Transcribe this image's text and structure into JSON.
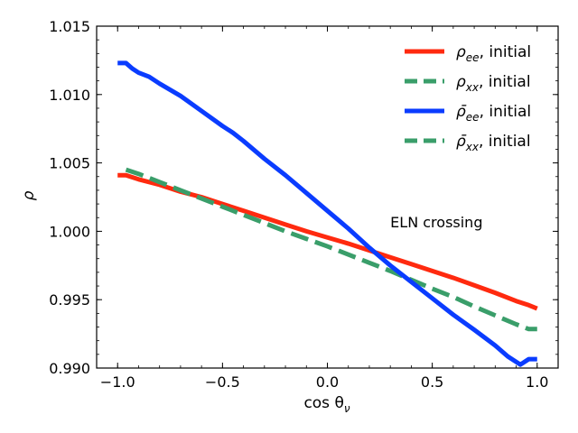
{
  "chart_data": {
    "type": "line",
    "title": "",
    "xlabel": "cos θ_ν",
    "ylabel": "ρ",
    "xlim": [
      -1.1,
      1.1
    ],
    "ylim": [
      0.99,
      1.015
    ],
    "xticks": [
      -1.0,
      -0.5,
      0.0,
      0.5,
      1.0
    ],
    "xtick_labels": [
      "−1.0",
      "−0.5",
      "0.0",
      "0.5",
      "1.0"
    ],
    "yticks": [
      0.99,
      0.995,
      1.0,
      1.005,
      1.01,
      1.015
    ],
    "ytick_labels": [
      "0.990",
      "0.995",
      "1.000",
      "1.005",
      "1.010",
      "1.015"
    ],
    "grid": false,
    "legend_position": "top-right",
    "annotations": [
      {
        "text": "ELN crossing",
        "x": 0.3,
        "y": 1.0003
      }
    ],
    "series": [
      {
        "name": "ρ_ee, initial",
        "color": "#ff2a0f",
        "style": "solid",
        "x": [
          -1.0,
          -0.96,
          -0.9,
          -0.8,
          -0.7,
          -0.6,
          -0.5,
          -0.4,
          -0.3,
          -0.2,
          -0.1,
          0.0,
          0.1,
          0.2,
          0.3,
          0.4,
          0.5,
          0.6,
          0.7,
          0.8,
          0.9,
          0.96,
          1.0
        ],
        "values": [
          1.0041,
          1.0041,
          1.0038,
          1.0034,
          1.0029,
          1.0025,
          1.002,
          1.0015,
          1.001,
          1.0005,
          1.0,
          0.99955,
          0.9991,
          0.9986,
          0.9981,
          0.9976,
          0.9971,
          0.9966,
          0.99605,
          0.9955,
          0.9949,
          0.9946,
          0.99435
        ]
      },
      {
        "name": "ρ_xx, initial",
        "color": "#3a9e6a",
        "style": "dashed",
        "x": [
          -0.96,
          -0.9,
          -0.8,
          -0.7,
          -0.6,
          -0.5,
          -0.4,
          -0.3,
          -0.2,
          -0.1,
          0.0,
          0.1,
          0.2,
          0.3,
          0.4,
          0.5,
          0.6,
          0.7,
          0.8,
          0.9,
          0.96,
          1.0
        ],
        "values": [
          1.0045,
          1.0042,
          1.0036,
          1.003,
          1.0024,
          1.0018,
          1.0012,
          1.0006,
          1.0,
          0.99945,
          0.9989,
          0.9983,
          0.9977,
          0.9971,
          0.99645,
          0.9958,
          0.9952,
          0.9945,
          0.99385,
          0.9932,
          0.99285,
          0.99285
        ]
      },
      {
        "name": "ρ̄_ee, initial",
        "color": "#0a3cff",
        "style": "solid",
        "x": [
          -1.0,
          -0.96,
          -0.93,
          -0.9,
          -0.85,
          -0.8,
          -0.7,
          -0.6,
          -0.5,
          -0.45,
          -0.4,
          -0.3,
          -0.2,
          -0.1,
          0.0,
          0.1,
          0.2,
          0.3,
          0.4,
          0.5,
          0.6,
          0.7,
          0.8,
          0.86,
          0.92,
          0.96,
          1.0
        ],
        "values": [
          1.0123,
          1.0123,
          1.0119,
          1.0116,
          1.0113,
          1.0108,
          1.0099,
          1.0088,
          1.0077,
          1.0072,
          1.0066,
          1.0053,
          1.0041,
          1.0028,
          1.0015,
          1.0002,
          0.9988,
          0.9975,
          0.9963,
          0.9951,
          0.9939,
          0.9928,
          0.99165,
          0.99085,
          0.99025,
          0.99065,
          0.99065
        ]
      },
      {
        "name": "ρ̄_xx, initial",
        "color": "#3a9e6a",
        "style": "dashed",
        "x": [],
        "values": []
      }
    ]
  }
}
